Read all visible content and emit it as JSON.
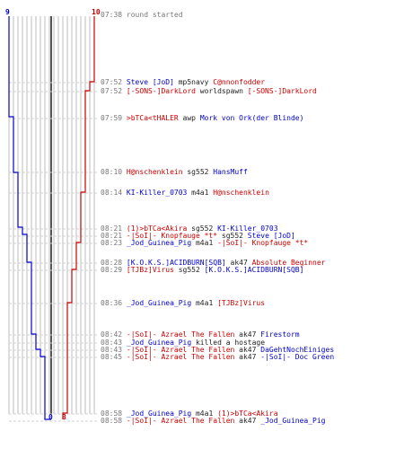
{
  "colors": {
    "blue": "#0000cc",
    "red": "#cc0000",
    "grid": "#bdbdbd",
    "center": "#555555",
    "text": "#222222",
    "time": "#777777"
  },
  "scores": {
    "blue_top": "9",
    "red_top": "10",
    "blue_bottom": "0",
    "red_bottom": "3"
  },
  "events": [
    {
      "time": "07:38",
      "parts": [
        {
          "text": "round started",
          "c": "time"
        }
      ]
    },
    {
      "time": "07:52",
      "parts": [
        {
          "text": "Steve [JoD]",
          "c": "b"
        },
        {
          "text": " mp5navy ",
          "c": "n"
        },
        {
          "text": "C@nnonfodder",
          "c": "r"
        }
      ]
    },
    {
      "time": "07:52",
      "parts": [
        {
          "text": "[-SONS-]DarkLord",
          "c": "r"
        },
        {
          "text": " worldspawn ",
          "c": "n"
        },
        {
          "text": "[-SONS-]DarkLord",
          "c": "r"
        }
      ]
    },
    {
      "time": "07:59",
      "parts": [
        {
          "text": ">bTCa<tHALER",
          "c": "r"
        },
        {
          "text": " awp ",
          "c": "n"
        },
        {
          "text": "Mork von Ork(der Blinde)",
          "c": "b"
        }
      ]
    },
    {
      "time": "08:10",
      "parts": [
        {
          "text": "H@nschenklein",
          "c": "r"
        },
        {
          "text": " sg552 ",
          "c": "n"
        },
        {
          "text": "HansMuff",
          "c": "b"
        }
      ]
    },
    {
      "time": "08:14",
      "parts": [
        {
          "text": "KI-Killer_0703",
          "c": "b"
        },
        {
          "text": " m4a1 ",
          "c": "n"
        },
        {
          "text": "H@nschenklein",
          "c": "r"
        }
      ]
    },
    {
      "time": "08:21",
      "parts": [
        {
          "text": "(1)>bTCa<Akira",
          "c": "r"
        },
        {
          "text": " sg552 ",
          "c": "n"
        },
        {
          "text": "KI-Killer_0703",
          "c": "b"
        }
      ]
    },
    {
      "time": "08:21",
      "parts": [
        {
          "text": "-|SoI|- Knopfauge *t*",
          "c": "r"
        },
        {
          "text": " sg552 ",
          "c": "n"
        },
        {
          "text": "Steve [JoD]",
          "c": "b"
        }
      ]
    },
    {
      "time": "08:23",
      "parts": [
        {
          "text": "_Jod_Guinea_Pig",
          "c": "b"
        },
        {
          "text": " m4a1 ",
          "c": "n"
        },
        {
          "text": "-|SoI|- Knopfauge *t*",
          "c": "r"
        }
      ]
    },
    {
      "time": "08:28",
      "parts": [
        {
          "text": "[K.O.K.S.]ACIDBURN[SQB]",
          "c": "b"
        },
        {
          "text": " ak47 ",
          "c": "n"
        },
        {
          "text": "Absolute Beginner",
          "c": "r"
        }
      ]
    },
    {
      "time": "08:29",
      "parts": [
        {
          "text": "[TJBz]Virus",
          "c": "r"
        },
        {
          "text": " sg552 ",
          "c": "n"
        },
        {
          "text": "[K.O.K.S.]ACIDBURN[SQB]",
          "c": "b"
        }
      ]
    },
    {
      "time": "08:36",
      "parts": [
        {
          "text": "_Jod_Guinea_Pig",
          "c": "b"
        },
        {
          "text": " m4a1 ",
          "c": "n"
        },
        {
          "text": "[TJBz]Virus",
          "c": "r"
        }
      ]
    },
    {
      "time": "08:42",
      "parts": [
        {
          "text": "-|SoI|- Azrael The Fallen",
          "c": "r"
        },
        {
          "text": " ak47 ",
          "c": "n"
        },
        {
          "text": "Firestorm",
          "c": "b"
        }
      ]
    },
    {
      "time": "08:43",
      "parts": [
        {
          "text": "_Jod_Guinea_Pig",
          "c": "b"
        },
        {
          "text": " killed a hostage",
          "c": "n"
        }
      ]
    },
    {
      "time": "08:43",
      "parts": [
        {
          "text": "-|SoI|- Azrael The Fallen",
          "c": "r"
        },
        {
          "text": " ak47 ",
          "c": "n"
        },
        {
          "text": "DaGehtNochEiniges",
          "c": "b"
        }
      ]
    },
    {
      "time": "08:45",
      "parts": [
        {
          "text": "-|SoI|- Azrael The Fallen",
          "c": "r"
        },
        {
          "text": " ak47 ",
          "c": "n"
        },
        {
          "text": "-|SoI|- Doc Green",
          "c": "b"
        }
      ]
    },
    {
      "time": "08:58",
      "parts": [
        {
          "text": "_Jod_Guinea_Pig",
          "c": "b"
        },
        {
          "text": " m4a1 ",
          "c": "n"
        },
        {
          "text": "(1)>bTCa<Akira",
          "c": "r"
        }
      ]
    },
    {
      "time": "08:58",
      "parts": [
        {
          "text": "-|SoI|- Azrael The Fallen",
          "c": "r"
        },
        {
          "text": " ak47 ",
          "c": "n"
        },
        {
          "text": "_Jod_Guinea_Pig",
          "c": "b"
        }
      ]
    }
  ]
}
